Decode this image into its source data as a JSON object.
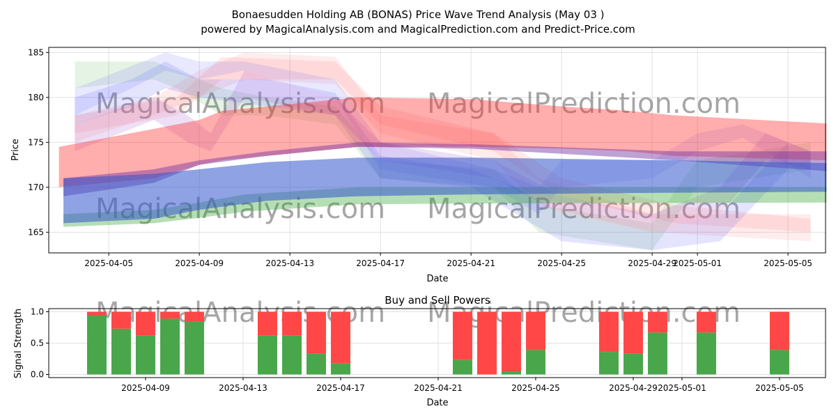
{
  "title_line1": "Bonaesudden Holding AB (BONAS) Price Wave Trend Analysis (May 03 )",
  "title_line2": "powered by MagicalAnalysis.com and MagicalPrediction.com and Predict-Price.com",
  "watermarks": [
    "MagicalAnalysis.com",
    "MagicalPrediction.com"
  ],
  "chart_data": [
    {
      "type": "area",
      "title": "",
      "xlabel": "Date",
      "ylabel": "Price",
      "ylim": [
        162.7,
        185.5
      ],
      "xlim_days": [
        "2025-04-02",
        "2025-05-06"
      ],
      "grid": true,
      "yticks": [
        165,
        170,
        175,
        180,
        185
      ],
      "xticks": [
        {
          "label": "2025-04-05",
          "day": 5
        },
        {
          "label": "2025-04-09",
          "day": 9
        },
        {
          "label": "2025-04-13",
          "day": 13
        },
        {
          "label": "2025-04-17",
          "day": 17
        },
        {
          "label": "2025-04-21",
          "day": 21
        },
        {
          "label": "2025-04-25",
          "day": 25
        },
        {
          "label": "2025-04-29",
          "day": 29
        },
        {
          "label": "2025-05-01",
          "day": 31
        },
        {
          "label": "2025-05-05",
          "day": 35
        }
      ],
      "day_note": "day = day of April 2025 (May d = 30 + d)",
      "bands": [
        {
          "name": "wave-green",
          "color": "#2ca02c",
          "alpha": 0.12,
          "points": [
            [
              3.5,
              181,
              184
            ],
            [
              7,
              182,
              184
            ],
            [
              8,
              181,
              183
            ],
            [
              10,
              178,
              181
            ],
            [
              12,
              178,
              180
            ],
            [
              15,
              177,
              179
            ],
            [
              17,
              171,
              173
            ],
            [
              22,
              170,
              172
            ],
            [
              24,
              165,
              168
            ],
            [
              29,
              163,
              166
            ],
            [
              31,
              170,
              173
            ],
            [
              36,
              172,
              175
            ]
          ]
        },
        {
          "name": "wave-light-red",
          "color": "#ff6b6b",
          "alpha": 0.15,
          "points": [
            [
              3.5,
              176,
              178
            ],
            [
              8,
              178,
              180
            ],
            [
              10,
              182,
              184.5
            ],
            [
              15,
              182,
              184
            ],
            [
              17,
              177,
              179
            ],
            [
              22,
              174,
              176
            ],
            [
              25,
              169,
              171
            ],
            [
              30,
              166,
              168
            ],
            [
              36,
              165,
              166.5
            ]
          ]
        },
        {
          "name": "wave-pink",
          "color": "#ff8080",
          "alpha": 0.15,
          "points": [
            [
              3.5,
              175,
              178
            ],
            [
              7,
              178,
              180
            ],
            [
              9,
              180,
              183
            ],
            [
              11,
              182,
              185
            ],
            [
              15,
              181.5,
              184.5
            ],
            [
              17,
              176,
              178
            ],
            [
              22,
              173,
              176
            ],
            [
              24,
              168,
              171
            ],
            [
              29,
              165,
              167
            ],
            [
              36,
              164,
              167
            ]
          ]
        },
        {
          "name": "wave-blue",
          "color": "#4d4dff",
          "alpha": 0.15,
          "points": [
            [
              3.5,
              177,
              180
            ],
            [
              6,
              179,
              182
            ],
            [
              7.5,
              181,
              184
            ],
            [
              9,
              180,
              182
            ],
            [
              12,
              179,
              182
            ],
            [
              15,
              178,
              180.5
            ],
            [
              17,
              171,
              173.5
            ],
            [
              21,
              170,
              172
            ],
            [
              23,
              167,
              170
            ],
            [
              25,
              164,
              167
            ],
            [
              29,
              163,
              165
            ],
            [
              32,
              164,
              167
            ],
            [
              35,
              172,
              175
            ]
          ]
        },
        {
          "name": "wave-blue-2",
          "color": "#6666ff",
          "alpha": 0.15,
          "points": [
            [
              3.5,
              178,
              181
            ],
            [
              6,
              181,
              183.5
            ],
            [
              7.5,
              183,
              185
            ],
            [
              9,
              182,
              184
            ],
            [
              11,
              183,
              184
            ],
            [
              15,
              180,
              182
            ],
            [
              17,
              172,
              175
            ],
            [
              22,
              170,
              172
            ],
            [
              24,
              167,
              170
            ],
            [
              25,
              170,
              173
            ],
            [
              29,
              171,
              173
            ],
            [
              31,
              174,
              176
            ],
            [
              33,
              175.5,
              177
            ],
            [
              36,
              171,
              174
            ]
          ]
        },
        {
          "name": "wave-purple",
          "color": "#9955cc",
          "alpha": 0.18,
          "points": [
            [
              3.5,
              174,
              177
            ],
            [
              7,
              177.5,
              180
            ],
            [
              8.5,
              175,
              178
            ],
            [
              9.5,
              174,
              176
            ],
            [
              11,
              180,
              183
            ],
            [
              15,
              178,
              180
            ],
            [
              17,
              173,
              175
            ],
            [
              22,
              171,
              173
            ],
            [
              25,
              167,
              169
            ],
            [
              29,
              165,
              167
            ],
            [
              32,
              167,
              170
            ],
            [
              34,
              173,
              176
            ],
            [
              36,
              172,
              174
            ]
          ]
        },
        {
          "name": "trend-green",
          "color": "#2ca02c",
          "alpha": 0.35,
          "points": [
            [
              3,
              165.6,
              167
            ],
            [
              7,
              166,
              167.5
            ],
            [
              9,
              166.6,
              168.3
            ],
            [
              11,
              167.3,
              169.2
            ],
            [
              16,
              168.1,
              170
            ],
            [
              21,
              168.2,
              170
            ],
            [
              36.7,
              168.3,
              170
            ]
          ]
        },
        {
          "name": "trend-red",
          "color": "#ff3333",
          "alpha": 0.4,
          "points": [
            [
              2.8,
              170,
              174.5
            ],
            [
              7,
              171,
              176.5
            ],
            [
              9,
              172.5,
              177.5
            ],
            [
              10,
              173,
              178.5
            ],
            [
              12,
              173.5,
              179
            ],
            [
              14,
              174,
              179.5
            ],
            [
              16,
              174.5,
              180
            ],
            [
              21,
              174.5,
              179.8
            ],
            [
              25,
              174.3,
              179
            ],
            [
              28,
              174,
              178.5
            ],
            [
              30,
              173.5,
              178
            ],
            [
              36.7,
              173,
              177.1
            ]
          ]
        },
        {
          "name": "trend-purple",
          "color": "#7030a0",
          "alpha": 0.45,
          "points": [
            [
              3,
              169,
              171
            ],
            [
              7,
              170.5,
              172
            ],
            [
              9,
              172.5,
              173
            ],
            [
              12,
              173.5,
              174
            ],
            [
              16,
              174.5,
              175
            ],
            [
              21,
              174.3,
              174.8
            ],
            [
              30,
              173,
              174
            ],
            [
              36.7,
              171.8,
              174
            ]
          ]
        },
        {
          "name": "trend-blue",
          "color": "#3355cc",
          "alpha": 0.55,
          "points": [
            [
              3,
              166,
              171
            ],
            [
              7,
              166.5,
              171.5
            ],
            [
              9,
              167.5,
              172
            ],
            [
              12,
              168.5,
              172.8
            ],
            [
              16,
              169,
              173.3
            ],
            [
              21,
              169.2,
              173.3
            ],
            [
              30,
              169.4,
              173
            ],
            [
              36.7,
              169.5,
              172.7
            ]
          ]
        }
      ]
    },
    {
      "type": "bar",
      "title": "Buy and Sell Powers",
      "xlabel": "Date",
      "ylabel": "Signal Strength",
      "ylim": [
        -0.05,
        1.05
      ],
      "yticks": [
        "0.0",
        "0.5",
        "1.0"
      ],
      "xticks": [
        {
          "label": "2025-04-09",
          "day": 9
        },
        {
          "label": "2025-04-13",
          "day": 13
        },
        {
          "label": "2025-04-17",
          "day": 17
        },
        {
          "label": "2025-04-21",
          "day": 21
        },
        {
          "label": "2025-04-25",
          "day": 25
        },
        {
          "label": "2025-04-29",
          "day": 29
        },
        {
          "label": "2025-05-01",
          "day": 31
        },
        {
          "label": "2025-05-05",
          "day": 35
        }
      ],
      "categories": [
        "2025-04-07",
        "2025-04-08",
        "2025-04-09",
        "2025-04-10",
        "2025-04-11",
        "2025-04-14",
        "2025-04-15",
        "2025-04-16",
        "2025-04-17",
        "2025-04-22",
        "2025-04-23",
        "2025-04-24",
        "2025-04-25",
        "2025-04-28",
        "2025-04-29",
        "2025-04-30",
        "2025-05-02",
        "2025-05-05"
      ],
      "days": [
        7,
        8,
        9,
        10,
        11,
        14,
        15,
        16,
        17,
        22,
        23,
        24,
        25,
        28,
        29,
        30,
        32,
        35
      ],
      "series": [
        {
          "name": "Buy",
          "color": "#4aa64a",
          "values": [
            0.95,
            0.73,
            0.62,
            0.89,
            0.84,
            0.62,
            0.62,
            0.33,
            0.18,
            0.23,
            0.0,
            0.05,
            0.39,
            0.36,
            0.33,
            0.67,
            0.67,
            0.39
          ]
        },
        {
          "name": "Sell",
          "color": "#ff4747",
          "values": [
            0.05,
            0.27,
            0.38,
            0.11,
            0.16,
            0.38,
            0.38,
            0.67,
            0.82,
            0.77,
            1.0,
            0.95,
            0.61,
            0.64,
            0.67,
            0.33,
            0.33,
            0.61
          ]
        }
      ]
    }
  ]
}
